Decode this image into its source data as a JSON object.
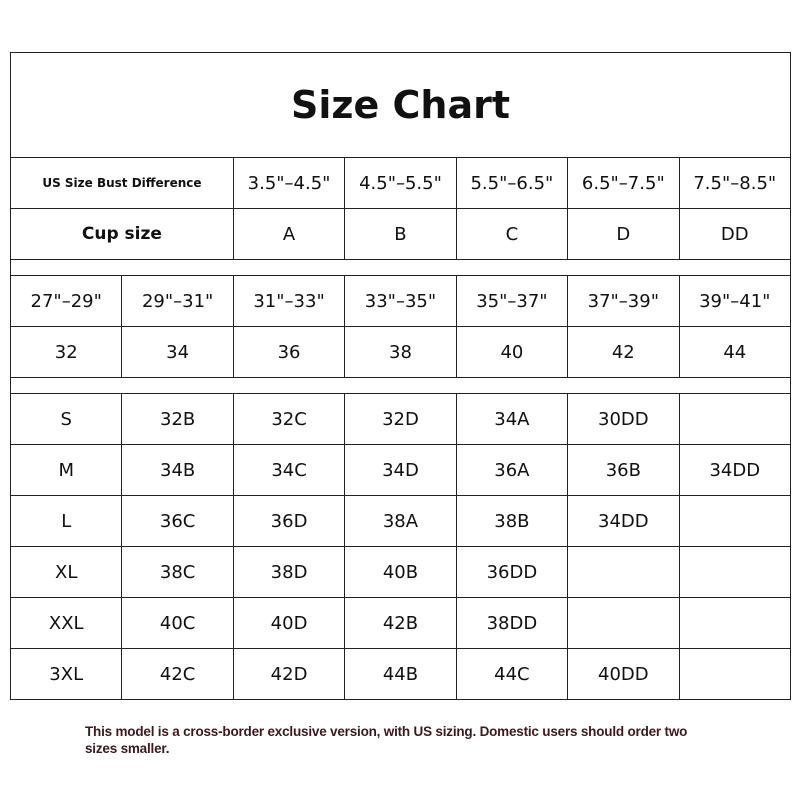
{
  "title": "Size Chart",
  "bust_difference": {
    "label": "US Size Bust Difference",
    "values": [
      "3.5\"–4.5\"",
      "4.5\"–5.5\"",
      "5.5\"–6.5\"",
      "6.5\"–7.5\"",
      "7.5\"–8.5\""
    ]
  },
  "cup_size": {
    "label": "Cup size",
    "values": [
      "A",
      "B",
      "C",
      "D",
      "DD"
    ]
  },
  "band": {
    "ranges": [
      "27\"–29\"",
      "29\"–31\"",
      "31\"–33\"",
      "33\"–35\"",
      "35\"–37\"",
      "37\"–39\"",
      "39\"–41\""
    ],
    "sizes": [
      "32",
      "34",
      "36",
      "38",
      "40",
      "42",
      "44"
    ]
  },
  "size_rows": [
    [
      "S",
      "32B",
      "32C",
      "32D",
      "34A",
      "30DD",
      ""
    ],
    [
      "M",
      "34B",
      "34C",
      "34D",
      "36A",
      "36B",
      "34DD"
    ],
    [
      "L",
      "36C",
      "36D",
      "38A",
      "38B",
      "34DD",
      ""
    ],
    [
      "XL",
      "38C",
      "38D",
      "40B",
      "36DD",
      "",
      ""
    ],
    [
      "XXL",
      "40C",
      "40D",
      "42B",
      "38DD",
      "",
      ""
    ],
    [
      "3XL",
      "42C",
      "42D",
      "44B",
      "44C",
      "40DD",
      ""
    ]
  ],
  "note": "This model is a cross-border exclusive version, with US sizing. Domestic users should order two sizes smaller."
}
